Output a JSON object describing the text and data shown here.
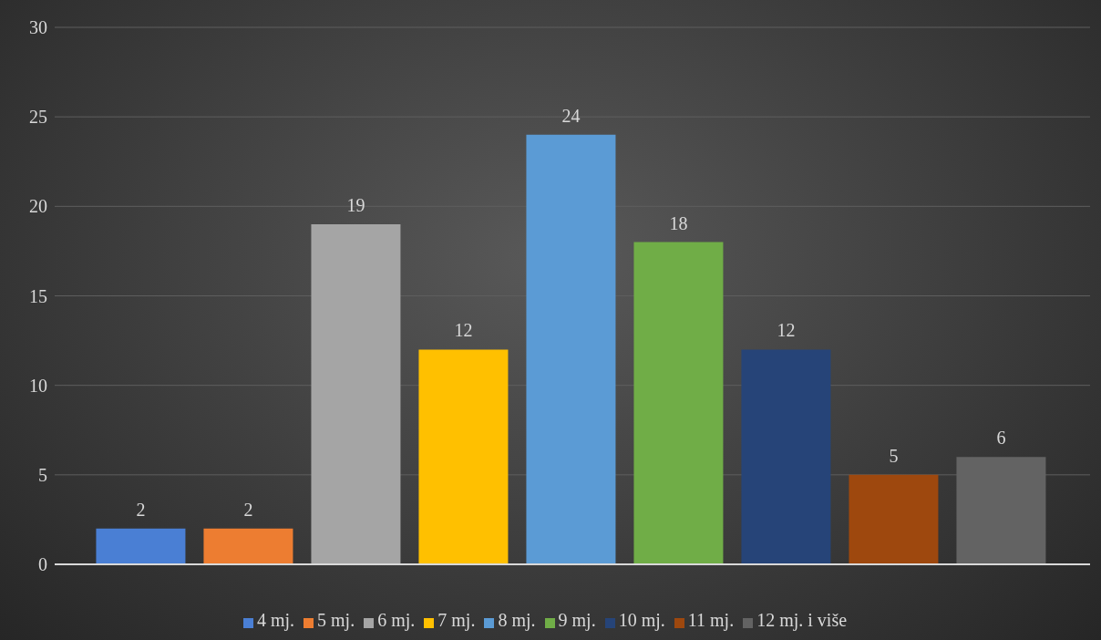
{
  "chart_data": {
    "type": "bar",
    "categories": [
      null
    ],
    "series": [
      {
        "name": "4 mj.",
        "color": "#4a7fd4",
        "values": [
          2
        ]
      },
      {
        "name": "5 mj.",
        "color": "#ed7d31",
        "values": [
          2
        ]
      },
      {
        "name": "6 mj.",
        "color": "#a5a5a5",
        "values": [
          19
        ]
      },
      {
        "name": "7 mj.",
        "color": "#ffc000",
        "values": [
          12
        ]
      },
      {
        "name": "8 mj.",
        "color": "#5b9bd5",
        "values": [
          24
        ]
      },
      {
        "name": "9 mj.",
        "color": "#70ad47",
        "values": [
          18
        ]
      },
      {
        "name": "10 mj.",
        "color": "#264478",
        "values": [
          12
        ]
      },
      {
        "name": "11 mj.",
        "color": "#9e480e",
        "values": [
          5
        ]
      },
      {
        "name": "12 mj. i više",
        "color": "#636363",
        "values": [
          6
        ]
      }
    ],
    "ylim": [
      0,
      30
    ],
    "yticks": [
      0,
      5,
      10,
      15,
      20,
      25,
      30
    ],
    "grid": "y",
    "legend": "bottom",
    "data_labels": true,
    "tick_labels": "y"
  }
}
